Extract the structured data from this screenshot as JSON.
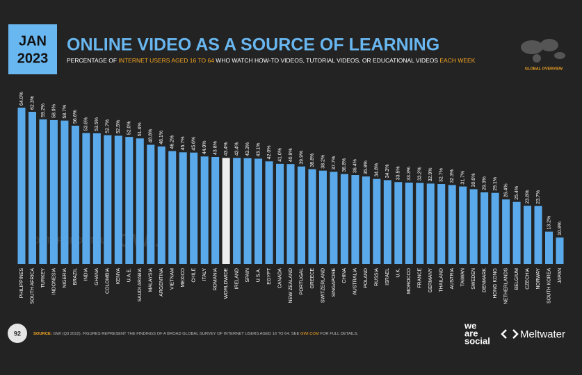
{
  "header": {
    "month": "JAN",
    "year": "2023",
    "badge": "GLOBAL OVERVIEW"
  },
  "chart_data": {
    "type": "bar",
    "title": "ONLINE VIDEO AS A SOURCE OF LEARNING",
    "subtitle": [
      "PERCENTAGE OF ",
      "INTERNET USERS AGED 16 TO 64",
      " WHO WATCH HOW-TO VIDEOS, TUTORIAL VIDEOS, OR EDUCATIONAL VIDEOS ",
      "EACH WEEK"
    ],
    "categories": [
      "PHILIPPINES",
      "SOUTH AFRICA",
      "TURKEY",
      "INDONESIA",
      "NIGERIA",
      "BRAZIL",
      "INDIA",
      "GHANA",
      "COLOMBIA",
      "KENYA",
      "U.A.E.",
      "SAUDI ARABIA",
      "MALAYSIA",
      "ARGENTINA",
      "VIETNAM",
      "MEXICO",
      "CHILE",
      "ITALY",
      "ROMANIA",
      "WORLDWIDE",
      "IRELAND",
      "SPAIN",
      "U.S.A.",
      "EGYPT",
      "CANADA",
      "NEW ZEALAND",
      "PORTUGAL",
      "GREECE",
      "SWITZERLAND",
      "SINGAPORE",
      "CHINA",
      "AUSTRALIA",
      "POLAND",
      "RUSSIA",
      "ISRAEL",
      "U.K.",
      "MOROCCO",
      "FRANCE",
      "GERMANY",
      "THAILAND",
      "AUSTRIA",
      "TAIWAN",
      "SWEDEN",
      "DENMARK",
      "HONG KONG",
      "NETHERLANDS",
      "BELGIUM",
      "CZECHIA",
      "NORWAY",
      "SOUTH KOREA",
      "JAPAN"
    ],
    "values": [
      64.0,
      62.3,
      59.2,
      58.9,
      58.7,
      56.6,
      53.6,
      53.5,
      52.7,
      52.5,
      52.0,
      51.4,
      48.8,
      48.1,
      46.2,
      45.7,
      45.6,
      44.0,
      43.8,
      43.4,
      43.4,
      43.3,
      43.1,
      42.0,
      41.0,
      40.9,
      39.9,
      38.8,
      38.2,
      37.7,
      36.8,
      36.4,
      35.8,
      34.8,
      34.3,
      33.5,
      33.3,
      33.2,
      32.9,
      32.7,
      32.3,
      31.7,
      30.6,
      29.3,
      29.1,
      26.4,
      25.4,
      23.8,
      23.7,
      13.2,
      10.8
    ],
    "value_labels": [
      "64.0%",
      "62.3%",
      "59.2%",
      "58.9%",
      "58.7%",
      "56.6%",
      "53.6%",
      "53.5%",
      "52.7%",
      "52.5%",
      "52.0%",
      "51.4%",
      "48.8%",
      "48.1%",
      "46.2%",
      "45.7%",
      "45.6%",
      "44.0%",
      "43.8%",
      "43.4%",
      "43.4%",
      "43.3%",
      "43.1%",
      "42.0%",
      "41.0%",
      "40.9%",
      "39.9%",
      "38.8%",
      "38.2%",
      "37.7%",
      "36.8%",
      "36.4%",
      "35.8%",
      "34.8%",
      "34.3%",
      "33.5%",
      "33.3%",
      "33.2%",
      "32.9%",
      "32.7%",
      "32.3%",
      "31.7%",
      "30.6%",
      "29.3%",
      "29.1%",
      "26.4%",
      "25.4%",
      "23.8%",
      "23.7%",
      "13.2%",
      "10.8%"
    ],
    "colors": [
      "#5aaaeb",
      "#5aaaeb",
      "#5aaaeb",
      "#5aaaeb",
      "#5aaaeb",
      "#5aaaeb",
      "#5aaaeb",
      "#5aaaeb",
      "#5aaaeb",
      "#5aaaeb",
      "#5aaaeb",
      "#5aaaeb",
      "#5aaaeb",
      "#5aaaeb",
      "#5aaaeb",
      "#5aaaeb",
      "#5aaaeb",
      "#5aaaeb",
      "#5aaaeb",
      "#eeeeee",
      "#5aaaeb",
      "#5aaaeb",
      "#5aaaeb",
      "#5aaaeb",
      "#5aaaeb",
      "#5aaaeb",
      "#5aaaeb",
      "#5aaaeb",
      "#5aaaeb",
      "#5aaaeb",
      "#5aaaeb",
      "#5aaaeb",
      "#5aaaeb",
      "#5aaaeb",
      "#5aaaeb",
      "#5aaaeb",
      "#5aaaeb",
      "#5aaaeb",
      "#5aaaeb",
      "#5aaaeb",
      "#5aaaeb",
      "#5aaaeb",
      "#5aaaeb",
      "#5aaaeb",
      "#5aaaeb",
      "#5aaaeb",
      "#5aaaeb",
      "#5aaaeb",
      "#5aaaeb",
      "#5aaaeb",
      "#5aaaeb"
    ]
  },
  "watermarks": [
    "DATAREPORTAL",
    "GWI."
  ],
  "footer": {
    "page": "92",
    "source_label": "SOURCE:",
    "source": " GWI (Q3 2022). FIGURES REPRESENT THE FINDINGS OF A BROAD GLOBAL SURVEY OF INTERNET USERS AGED 16 TO 64. SEE ",
    "source_link": "GWI.COM",
    "source_end": " FOR FULL DETAILS.",
    "logo1": [
      "we",
      "are",
      "social"
    ],
    "logo2": "Meltwater"
  }
}
